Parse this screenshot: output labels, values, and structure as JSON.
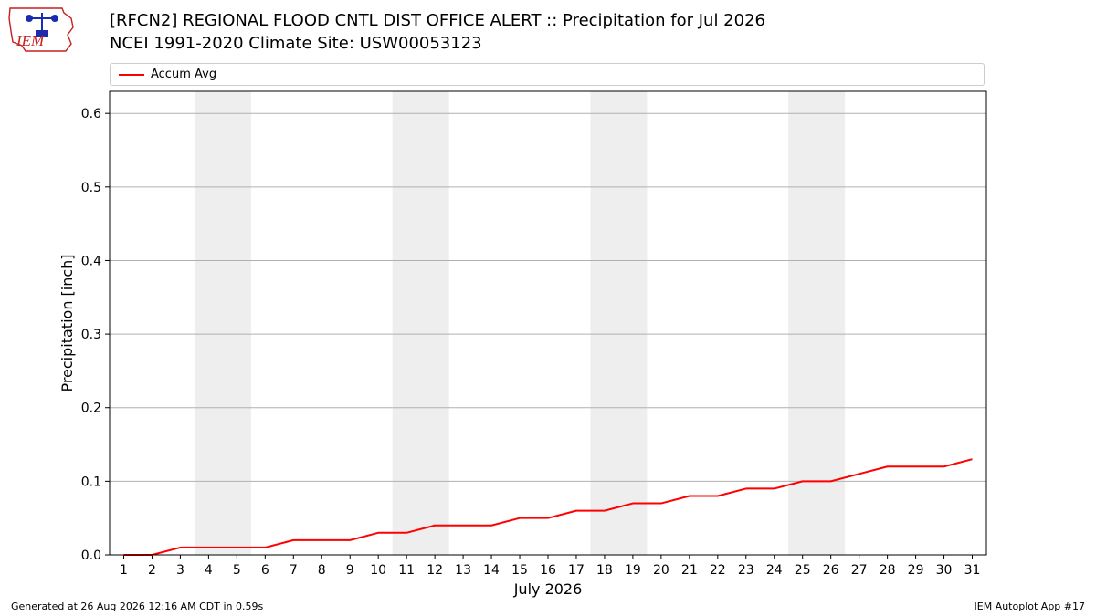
{
  "header": {
    "title_line1": "[RFCN2] REGIONAL FLOOD CNTL DIST OFFICE ALERT :: Precipitation for Jul 2026",
    "title_line2": "NCEI 1991-2020 Climate Site: USW00053123",
    "logo_text": "IEM"
  },
  "footer": {
    "left": "Generated at 26 Aug 2026 12:16 AM CDT in 0.59s",
    "right": "IEM Autoplot App #17"
  },
  "colors": {
    "line": "#ff0000",
    "weekend_band": "#eeeeee",
    "grid": "#b0b0b0",
    "logo": "#c81e1e",
    "logo_accent": "#1c2bb0"
  },
  "chart_data": {
    "type": "line",
    "xlabel": "July 2026",
    "ylabel": "Precipitation [inch]",
    "x": [
      1,
      2,
      3,
      4,
      5,
      6,
      7,
      8,
      9,
      10,
      11,
      12,
      13,
      14,
      15,
      16,
      17,
      18,
      19,
      20,
      21,
      22,
      23,
      24,
      25,
      26,
      27,
      28,
      29,
      30,
      31
    ],
    "xlim": [
      0.5,
      31.5
    ],
    "ylim": [
      0,
      0.63
    ],
    "yticks": [
      "0.0",
      "0.1",
      "0.2",
      "0.3",
      "0.4",
      "0.5",
      "0.6"
    ],
    "grid": "horizontal",
    "legend_position": "top",
    "weekend_bands": [
      [
        3.5,
        5.5
      ],
      [
        10.5,
        12.5
      ],
      [
        17.5,
        19.5
      ],
      [
        24.5,
        26.5
      ]
    ],
    "series": [
      {
        "name": "Accum Avg",
        "color": "#ff0000",
        "values": [
          0.0,
          0.0,
          0.01,
          0.01,
          0.01,
          0.01,
          0.02,
          0.02,
          0.02,
          0.03,
          0.03,
          0.04,
          0.04,
          0.04,
          0.05,
          0.05,
          0.06,
          0.06,
          0.07,
          0.07,
          0.08,
          0.08,
          0.09,
          0.09,
          0.1,
          0.1,
          0.11,
          0.12,
          0.12,
          0.12,
          0.13
        ]
      }
    ]
  }
}
